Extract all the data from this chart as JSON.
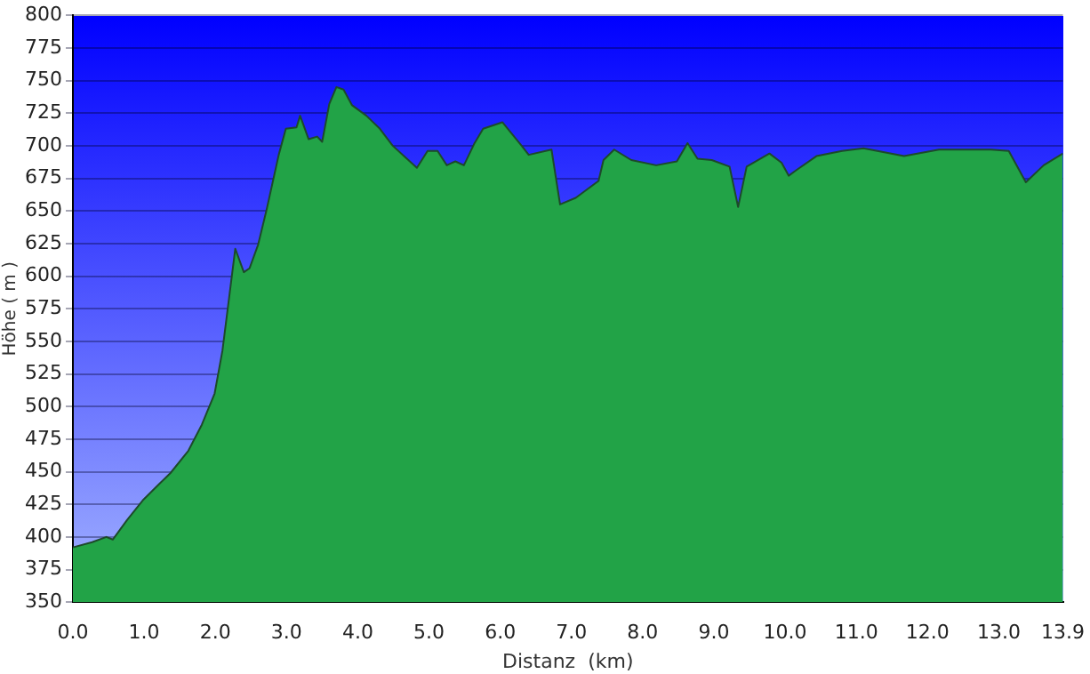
{
  "chart_data": {
    "type": "area",
    "xlabel": "Distanz  (km)",
    "ylabel": "Höhe ( m )",
    "xlim": [
      0,
      13.9
    ],
    "ylim": [
      350,
      800
    ],
    "xticks": [
      {
        "value": 0,
        "label": "0.0"
      },
      {
        "value": 1,
        "label": "1.0"
      },
      {
        "value": 2,
        "label": "2.0"
      },
      {
        "value": 3,
        "label": "3.0"
      },
      {
        "value": 4,
        "label": "4.0"
      },
      {
        "value": 5,
        "label": "5.0"
      },
      {
        "value": 6,
        "label": "6.0"
      },
      {
        "value": 7,
        "label": "7.0"
      },
      {
        "value": 8,
        "label": "8.0"
      },
      {
        "value": 9,
        "label": "9.0"
      },
      {
        "value": 10,
        "label": "10.0"
      },
      {
        "value": 11,
        "label": "11.0"
      },
      {
        "value": 12,
        "label": "12.0"
      },
      {
        "value": 13,
        "label": "13.0"
      },
      13.9
    ],
    "yticks": [
      350,
      375,
      400,
      425,
      450,
      475,
      500,
      525,
      550,
      575,
      600,
      625,
      650,
      675,
      700,
      725,
      750,
      775,
      800
    ],
    "grid": "y",
    "legend": false,
    "series": [
      {
        "color": "#22a347",
        "x": [
          0,
          0.27,
          0.47,
          0.56,
          0.76,
          0.98,
          1.2,
          1.37,
          1.62,
          1.81,
          1.99,
          2.1,
          2.28,
          2.4,
          2.48,
          2.6,
          2.72,
          2.89,
          2.99,
          3.14,
          3.19,
          3.31,
          3.43,
          3.5,
          3.6,
          3.7,
          3.8,
          3.92,
          4.12,
          4.31,
          4.49,
          4.71,
          4.83,
          4.98,
          5.12,
          5.25,
          5.37,
          5.49,
          5.64,
          5.76,
          6.03,
          6.3,
          6.4,
          6.72,
          6.84,
          7.06,
          7.38,
          7.45,
          7.6,
          7.84,
          8.19,
          8.48,
          8.63,
          8.77,
          8.97,
          9.22,
          9.34,
          9.46,
          9.78,
          9.95,
          10.05,
          10.15,
          10.44,
          10.8,
          11.1,
          11.67,
          12.16,
          12.89,
          13.14,
          13.38,
          13.63,
          13.9
        ],
        "values": [
          392,
          396,
          400,
          398,
          413,
          428,
          440,
          449,
          466,
          486,
          510,
          543,
          621,
          603,
          606,
          624,
          651,
          693,
          713,
          714,
          723,
          705,
          707,
          703,
          732,
          745,
          743,
          731,
          723,
          713,
          700,
          689,
          683,
          696,
          696,
          685,
          688,
          685,
          702,
          713,
          718,
          700,
          693,
          697,
          655,
          660,
          673,
          689,
          697,
          689,
          685,
          688,
          702,
          690,
          689,
          684,
          653,
          684,
          694,
          687,
          677,
          681,
          692,
          696,
          698,
          692,
          697,
          697,
          696,
          672,
          685,
          694
        ]
      }
    ]
  }
}
